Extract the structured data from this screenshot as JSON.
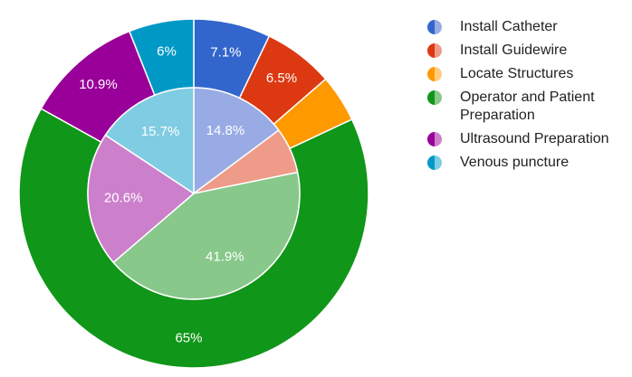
{
  "chart_data": {
    "type": "pie",
    "subtype": "nested-donut",
    "title": "",
    "legend_position": "right",
    "categories": [
      "Install Catheter",
      "Install Guidewire",
      "Locate Structures",
      "Operator and Patient Preparation",
      "Ultrasound Preparation",
      "Venous puncture"
    ],
    "series": [
      {
        "ring": "outer",
        "values": [
          7.1,
          6.5,
          4.4,
          65,
          10.9,
          6
        ],
        "labels": [
          "7.1%",
          "6.5%",
          "",
          "65%",
          "10.9%",
          "6%"
        ],
        "colors": [
          "#3366cc",
          "#dc3912",
          "#ff9900",
          "#109618",
          "#990099",
          "#0099c6"
        ]
      },
      {
        "ring": "inner",
        "values": [
          14.8,
          7.0,
          0,
          41.9,
          20.6,
          15.7
        ],
        "labels": [
          "14.8%",
          "",
          "",
          "41.9%",
          "20.6%",
          "15.7%"
        ],
        "colors": [
          "#99abe4",
          "#ee9c89",
          "#ffcc80",
          "#88c88b",
          "#cc80cc",
          "#80cce2"
        ]
      }
    ]
  },
  "legend": {
    "items": [
      {
        "label": "Install Catheter",
        "dark": "#3366cc",
        "light": "#99abe4"
      },
      {
        "label": "Install Guidewire",
        "dark": "#dc3912",
        "light": "#ee9c89"
      },
      {
        "label": "Locate Structures",
        "dark": "#ff9900",
        "light": "#ffcc80"
      },
      {
        "label": "Operator and Patient Preparation",
        "dark": "#109618",
        "light": "#88c88b"
      },
      {
        "label": "Ultrasound Preparation",
        "dark": "#990099",
        "light": "#cc80cc"
      },
      {
        "label": "Venous puncture",
        "dark": "#0099c6",
        "light": "#80cce2"
      }
    ]
  }
}
